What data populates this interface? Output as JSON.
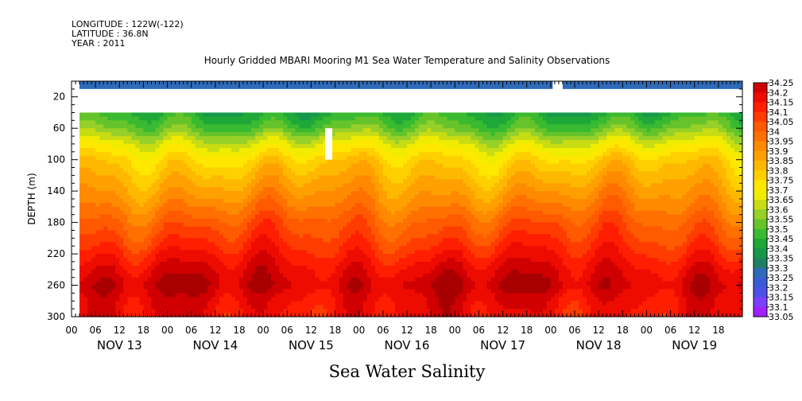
{
  "header": {
    "longitude": "LONGITUDE : 122W(-122)",
    "latitude": "LATITUDE : 36.8N",
    "year": "YEAR : 2011"
  },
  "colors": {
    "axis": "#000000",
    "data_gap": "#ffffff",
    "palette": [
      "#c800f8",
      "#a020ff",
      "#7a40ff",
      "#4c50e8",
      "#3a5ad8",
      "#2e6ab8",
      "#1e8060",
      "#15984a",
      "#1ea838",
      "#3aba30",
      "#66c42a",
      "#96d028",
      "#c8dc14",
      "#f0ec00",
      "#ffe800",
      "#ffd000",
      "#ffb800",
      "#ffa000",
      "#ff8a00",
      "#ff7000",
      "#ff5a00",
      "#ff3c00",
      "#ff1e00",
      "#ee0c00",
      "#d00000",
      "#a80000"
    ]
  },
  "chart_data": {
    "type": "heatmap",
    "title": "Hourly Gridded MBARI Mooring M1 Sea Water Temperature and Salinity Observations",
    "xlabel": "Sea Water Salinity",
    "ylabel": "DEPTH (m)",
    "xlim_hours": [
      0,
      168
    ],
    "ylim": [
      300,
      0
    ],
    "y_ticks": [
      "20",
      "60",
      "100",
      "140",
      "180",
      "220",
      "260",
      "300"
    ],
    "y_tick_values": [
      20,
      60,
      100,
      140,
      180,
      220,
      260,
      300
    ],
    "x_hour_tick_labels": [
      "00",
      "06",
      "12",
      "18",
      "00",
      "06",
      "12",
      "18",
      "00",
      "06",
      "12",
      "18",
      "00",
      "06",
      "12",
      "18",
      "00",
      "06",
      "12",
      "18",
      "00",
      "06",
      "12",
      "18",
      "00",
      "06",
      "12",
      "18"
    ],
    "x_day_labels": [
      "NOV 13",
      "NOV 14",
      "NOV 15",
      "NOV 16",
      "NOV 17",
      "NOV 18",
      "NOV 19"
    ],
    "colorbar_labels": [
      "34.25",
      "34.2",
      "34.15",
      "34.1",
      "34.05",
      "34",
      "33.95",
      "33.9",
      "33.85",
      "33.8",
      "33.75",
      "33.7",
      "33.65",
      "33.6",
      "33.55",
      "33.5",
      "33.45",
      "33.4",
      "33.35",
      "33.3",
      "33.25",
      "33.2",
      "33.15",
      "33.1",
      "33.05"
    ],
    "colorbar_range": [
      33.05,
      34.25
    ],
    "data_start_hour": 2,
    "surface_layer": {
      "depth_top": 0,
      "depth_bottom": 10,
      "value": 33.28,
      "gap_hours": [
        120.5,
        123
      ]
    },
    "profile_top_depth": 40,
    "profile_gap": {
      "hour": 63.5,
      "depth_top": 60,
      "depth_bottom": 100
    },
    "profile_depths": [
      40,
      60,
      80,
      100,
      120,
      140,
      160,
      180,
      200,
      220,
      240,
      260,
      280,
      300
    ],
    "mean_profile": [
      33.43,
      33.52,
      33.66,
      33.77,
      33.83,
      33.89,
      33.95,
      34.02,
      34.07,
      34.13,
      34.19,
      34.23,
      34.18,
      34.16
    ]
  }
}
